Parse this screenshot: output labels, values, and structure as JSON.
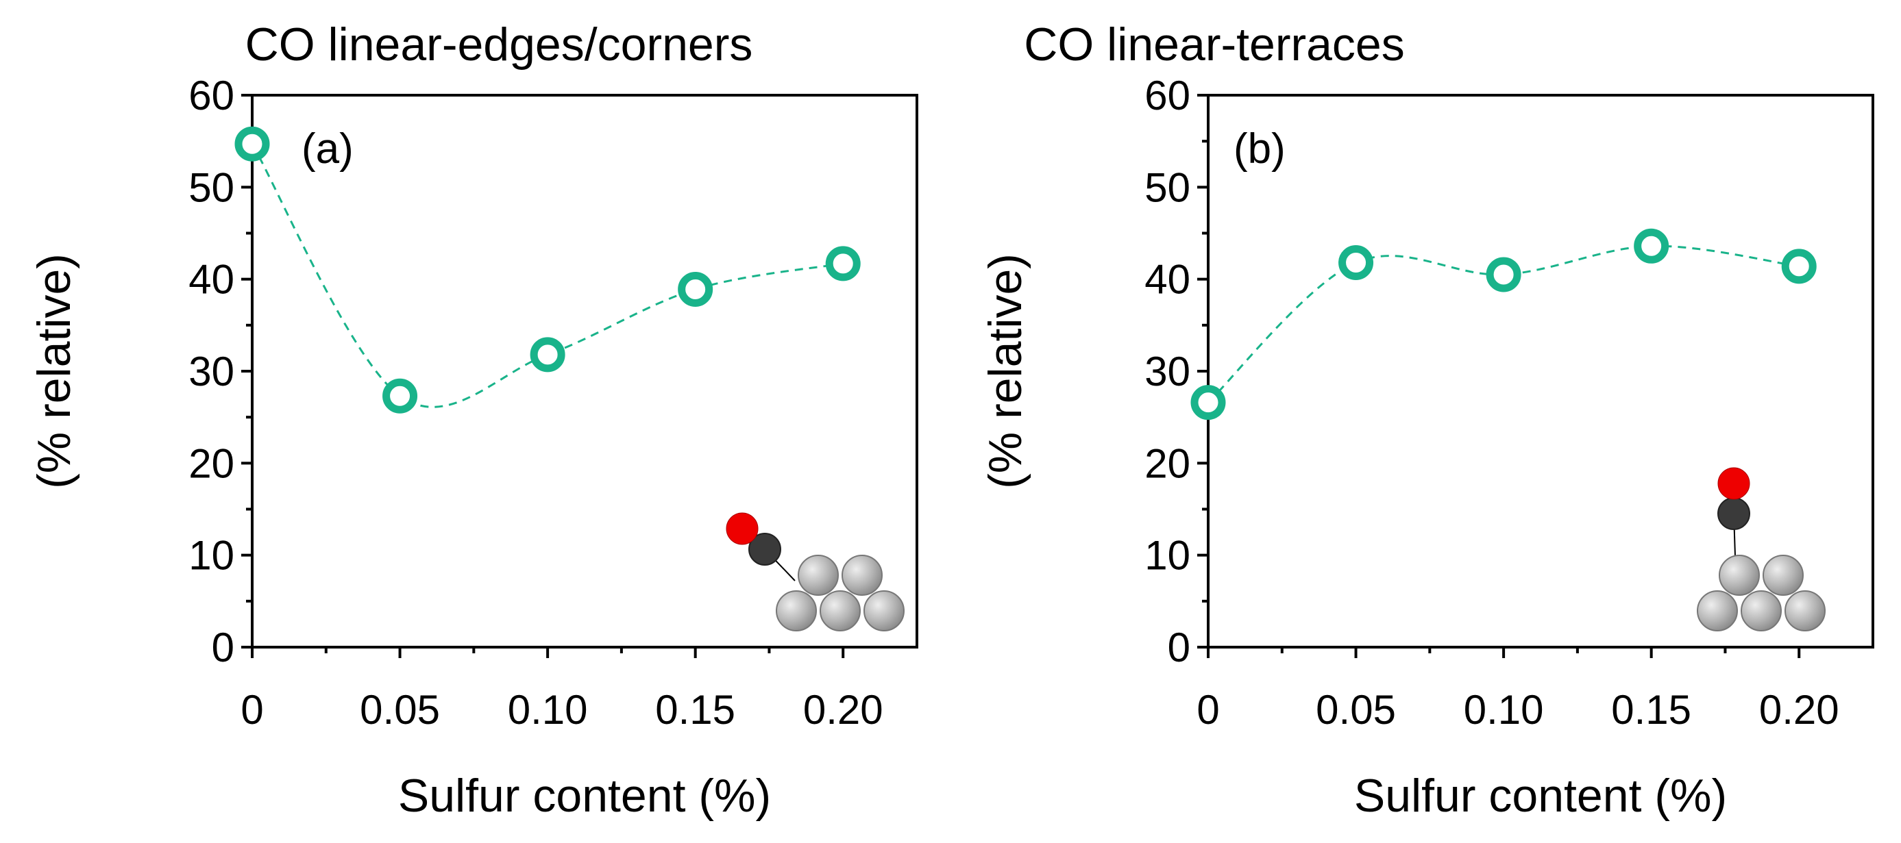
{
  "chart_data": [
    {
      "type": "scatter",
      "panel_label": "(a)",
      "title": "CO linear-edges/corners",
      "xlabel": "Sulfur content (%)",
      "ylabel": "(% relative)",
      "x": [
        0,
        0.05,
        0.1,
        0.15,
        0.2
      ],
      "y": [
        54.7,
        27.3,
        31.8,
        38.9,
        41.7
      ],
      "xlim": [
        0,
        0.225
      ],
      "ylim": [
        0,
        60
      ],
      "xticks": [
        "0",
        "0.05",
        "0.10",
        "0.15",
        "0.20"
      ],
      "yticks": [
        "0",
        "10",
        "20",
        "30",
        "40",
        "50",
        "60"
      ],
      "marker_color": "#19b38a",
      "inset": "CO on edge site"
    },
    {
      "type": "scatter",
      "panel_label": "(b)",
      "title": "CO linear-terraces",
      "xlabel": "Sulfur content (%)",
      "ylabel": "(% relative)",
      "x": [
        0,
        0.05,
        0.1,
        0.15,
        0.2
      ],
      "y": [
        26.6,
        41.8,
        40.5,
        43.6,
        41.4
      ],
      "xlim": [
        0,
        0.225
      ],
      "ylim": [
        0,
        60
      ],
      "xticks": [
        "0",
        "0.05",
        "0.10",
        "0.15",
        "0.20"
      ],
      "yticks": [
        "0",
        "10",
        "20",
        "30",
        "40",
        "50",
        "60"
      ],
      "marker_color": "#19b38a",
      "inset": "CO on terrace site"
    }
  ]
}
